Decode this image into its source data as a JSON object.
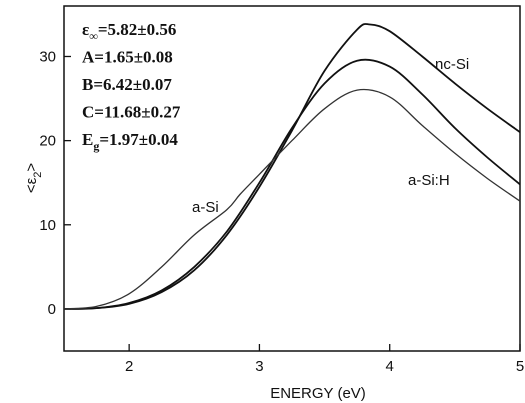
{
  "chart_data": {
    "type": "line",
    "xlabel": "ENERGY (eV)",
    "ylabel_main": "<ε",
    "ylabel_sub": "2",
    "ylabel_end": ">",
    "xlim": [
      1.5,
      5.0
    ],
    "ylim": [
      -5,
      36
    ],
    "x_ticks": [
      2,
      3,
      4,
      5
    ],
    "y_ticks": [
      0,
      10,
      20,
      30
    ],
    "grid": false,
    "params": [
      {
        "label": "ε",
        "sub": "∞",
        "value": "=5.82±0.56"
      },
      {
        "label": "A",
        "sub": "",
        "value": "=1.65±0.08"
      },
      {
        "label": "B",
        "sub": "",
        "value": "=6.42±0.07"
      },
      {
        "label": "C",
        "sub": "",
        "value": "=11.68±0.27"
      },
      {
        "label": "E",
        "sub": "g",
        "value": "=1.97±0.04"
      }
    ],
    "series": [
      {
        "name": "nc-Si",
        "color": "#111111",
        "x": [
          1.5,
          1.75,
          2.0,
          2.25,
          2.5,
          2.75,
          3.0,
          3.25,
          3.5,
          3.75,
          3.85,
          4.0,
          4.25,
          4.5,
          4.75,
          5.0
        ],
        "y": [
          0,
          0.1,
          0.6,
          2.0,
          4.6,
          8.8,
          14.5,
          21.2,
          28.3,
          33.2,
          33.8,
          33.0,
          30.0,
          26.8,
          23.8,
          21.0
        ]
      },
      {
        "name": "a-Si:H",
        "color": "#111111",
        "x": [
          1.5,
          1.75,
          2.0,
          2.25,
          2.5,
          2.75,
          3.0,
          3.25,
          3.5,
          3.75,
          4.0,
          4.25,
          4.5,
          4.75,
          5.0
        ],
        "y": [
          0,
          0.1,
          0.7,
          2.2,
          5.0,
          9.2,
          15.0,
          21.5,
          26.8,
          29.5,
          28.8,
          25.5,
          21.5,
          18.0,
          14.8
        ]
      },
      {
        "name": "a-Si",
        "color": "#333333",
        "x": [
          1.5,
          1.75,
          2.0,
          2.25,
          2.5,
          2.75,
          2.85,
          3.0,
          3.25,
          3.5,
          3.75,
          4.0,
          4.25,
          4.5,
          4.75,
          5.0
        ],
        "y": [
          0,
          0.3,
          1.8,
          5.0,
          8.8,
          11.8,
          13.6,
          16.0,
          20.0,
          23.8,
          26.0,
          25.2,
          21.8,
          18.5,
          15.5,
          12.8
        ]
      }
    ]
  }
}
